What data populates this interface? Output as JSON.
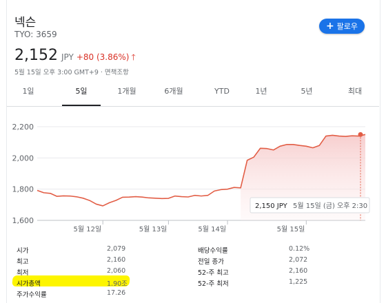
{
  "header": {
    "title": "넥슨",
    "ticker": "TYO: 3659",
    "follow_label": "팔로우"
  },
  "price": {
    "value": "2,152",
    "currency": "JPY",
    "change": "+80 (3.86%)",
    "timestamp": "5월 15일 오후 3:00 GMT+9 · 면책조항"
  },
  "tabs": [
    {
      "label": "1일"
    },
    {
      "label": "5일",
      "active": true
    },
    {
      "label": "1개월"
    },
    {
      "label": "6개월"
    },
    {
      "label": "YTD"
    },
    {
      "label": "1년"
    },
    {
      "label": "5년"
    },
    {
      "label": "최대"
    }
  ],
  "colors": {
    "accent": "#1a73e8",
    "line": "#e25d45",
    "positive_change": "#d93025",
    "highlight": "#fdf500"
  },
  "chart_data": {
    "type": "line",
    "y_ticks": [
      "2,200",
      "2,000",
      "1,800",
      "1,600"
    ],
    "ylim": [
      1600,
      2200
    ],
    "x_ticks": [
      "5월 12일",
      "5월 13일",
      "5월 14일",
      "5월 15일"
    ],
    "x": [
      "5월 11일",
      "5월 11일",
      "5월 11일",
      "5월 11일",
      "5월 11일",
      "5월 11일",
      "5월 11일",
      "5월 11일",
      "5월 11일",
      "5월 11일",
      "5월 12일",
      "5월 12일",
      "5월 12일",
      "5월 12일",
      "5월 12일",
      "5월 12일",
      "5월 12일",
      "5월 12일",
      "5월 12일",
      "5월 12일",
      "5월 13일",
      "5월 13일",
      "5월 13일",
      "5월 13일",
      "5월 13일",
      "5월 13일",
      "5월 13일",
      "5월 13일",
      "5월 13일",
      "5월 14일",
      "5월 14일",
      "5월 14일",
      "5월 14일",
      "5월 14일",
      "5월 14일",
      "5월 14일",
      "5월 14일",
      "5월 14일",
      "5월 14일",
      "5월 14일",
      "5월 14일",
      "5월 15일",
      "5월 15일",
      "5월 15일",
      "5월 15일",
      "5월 15일",
      "5월 15일",
      "5월 15일",
      "5월 15일",
      "5월 15일",
      "5월 15일"
    ],
    "values": [
      1792,
      1777,
      1773,
      1754,
      1757,
      1756,
      1751,
      1742,
      1727,
      1704,
      1693,
      1713,
      1728,
      1748,
      1749,
      1752,
      1749,
      1744,
      1742,
      1740,
      1741,
      1756,
      1752,
      1750,
      1760,
      1756,
      1760,
      1788,
      1797,
      1800,
      1811,
      1808,
      1985,
      2005,
      2062,
      2060,
      2051,
      2075,
      2086,
      2086,
      2080,
      2075,
      2065,
      2080,
      2140,
      2145,
      2140,
      2138,
      2142,
      2140,
      2150
    ],
    "tooltip": {
      "price": "2,150 JPY",
      "time": "5월 15일 (금) 오후 2:30"
    }
  },
  "stats": {
    "left": [
      {
        "label": "시가",
        "value": "2,079"
      },
      {
        "label": "최고",
        "value": "2,160"
      },
      {
        "label": "최저",
        "value": "2,060"
      },
      {
        "label": "시가총액",
        "value": "1.90조"
      },
      {
        "label": "주가수익률",
        "value": "17.26"
      }
    ],
    "right": [
      {
        "label": "배당수익률",
        "value": "0.12%"
      },
      {
        "label": "전일 종가",
        "value": "2,072"
      },
      {
        "label": "52-주 최고",
        "value": "2,160"
      },
      {
        "label": "52-주 최저",
        "value": "1,225"
      }
    ]
  }
}
